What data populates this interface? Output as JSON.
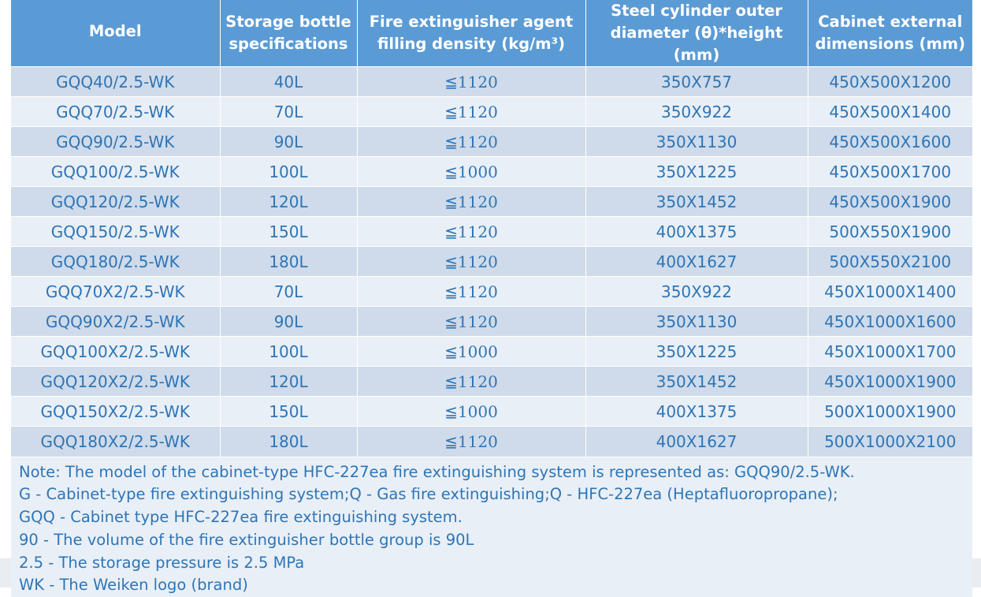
{
  "table": {
    "headers": [
      [
        "Model",
        ""
      ],
      [
        "Storage bottle",
        "specifications"
      ],
      [
        "Fire extinguisher agent",
        "filling density (kg/m³)"
      ],
      [
        "Steel cylinder outer",
        "diameter (θ)*height (mm)"
      ],
      [
        "Cabinet external",
        "dimensions (mm)"
      ]
    ],
    "rows": [
      [
        "GQQ40/2.5-WK",
        "40L",
        "≦1120",
        "350X757",
        "450X500X1200"
      ],
      [
        "GQQ70/2.5-WK",
        "70L",
        "≦1120",
        "350X922",
        "450X500X1400"
      ],
      [
        "GQQ90/2.5-WK",
        "90L",
        "≦1120",
        "350X1130",
        "450X500X1600"
      ],
      [
        "GQQ100/2.5-WK",
        "100L",
        "≦1000",
        "350X1225",
        "450X500X1700"
      ],
      [
        "GQQ120/2.5-WK",
        "120L",
        "≦1120",
        "350X1452",
        "450X500X1900"
      ],
      [
        "GQQ150/2.5-WK",
        "150L",
        "≦1120",
        "400X1375",
        "500X550X1900"
      ],
      [
        "GQQ180/2.5-WK",
        "180L",
        "≦1120",
        "400X1627",
        "500X550X2100"
      ],
      [
        "GQQ70X2/2.5-WK",
        "70L",
        "≦1120",
        "350X922",
        "450X1000X1400"
      ],
      [
        "GQQ90X2/2.5-WK",
        "90L",
        "≦1120",
        "350X1130",
        "450X1000X1600"
      ],
      [
        "GQQ100X2/2.5-WK",
        "100L",
        "≦1000",
        "350X1225",
        "450X1000X1700"
      ],
      [
        "GQQ120X2/2.5-WK",
        "120L",
        "≦1120",
        "350X1452",
        "450X1000X1900"
      ],
      [
        "GQQ150X2/2.5-WK",
        "150L",
        "≦1000",
        "400X1375",
        "500X1000X1900"
      ],
      [
        "GQQ180X2/2.5-WK",
        "180L",
        "≦1120",
        "400X1627",
        "500X1000X2100"
      ]
    ]
  },
  "note": {
    "lines": [
      "Note: The model of the cabinet-type HFC-227ea fire extinguishing system is represented as: GQQ90/2.5-WK.",
      "G - Cabinet-type fire extinguishing system;Q - Gas fire extinguishing;Q - HFC-227ea (Heptafluoropropane);",
      "GQQ - Cabinet type HFC-227ea fire extinguishing system.",
      "90 - The volume of the fire extinguisher bottle group is 90L",
      "2.5 - The storage pressure is 2.5 MPa",
      "WK - The Weiken logo (brand)"
    ]
  },
  "colors": {
    "header_bg": "#5b9bd5",
    "row_dark": "#cfdbea",
    "row_light": "#e9eff6",
    "text": "#2e75b6"
  }
}
